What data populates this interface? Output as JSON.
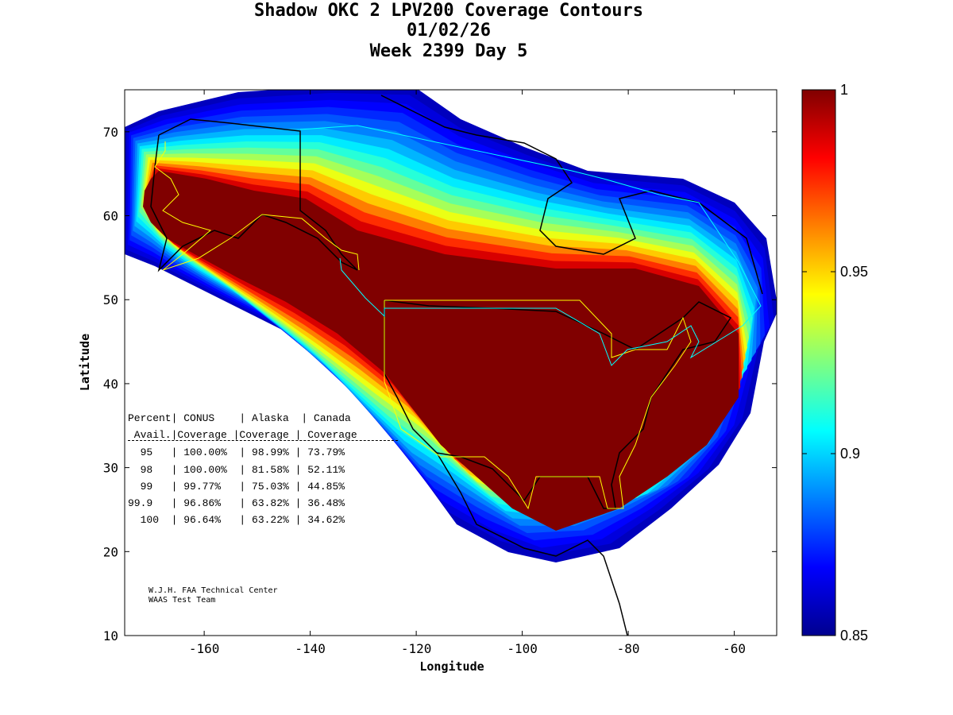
{
  "title": {
    "line1": "Shadow OKC 2 LPV200 Coverage Contours",
    "line2": "01/02/26",
    "line3": "Week 2399 Day 5"
  },
  "chart_data": {
    "type": "heatmap",
    "title": "Shadow OKC 2 LPV200 Coverage Contours",
    "xlabel": "Longitude",
    "ylabel": "Latitude",
    "xlim": [
      -175,
      -52
    ],
    "ylim": [
      10,
      75
    ],
    "xticks": [
      -160,
      -140,
      -120,
      -100,
      -80,
      -60
    ],
    "yticks": [
      10,
      20,
      30,
      40,
      50,
      60,
      70
    ],
    "colorbar": {
      "range": [
        0.85,
        1
      ],
      "ticks": [
        "0.85",
        "0.9",
        "0.95",
        "1"
      ],
      "colormap": "jet"
    }
  },
  "table": {
    "header1": [
      "Percent",
      "CONUS",
      "Alaska",
      "Canada"
    ],
    "header2": [
      "Avail.",
      "Coverage",
      "Coverage",
      "Coverage"
    ],
    "rows": [
      [
        "95",
        "100.00%",
        "98.99%",
        "73.79%"
      ],
      [
        "98",
        "100.00%",
        "81.58%",
        "52.11%"
      ],
      [
        "99",
        "99.77%",
        "75.03%",
        "44.85%"
      ],
      [
        "99.9",
        "96.86%",
        "63.82%",
        "36.48%"
      ],
      [
        "100",
        "96.64%",
        "63.22%",
        "34.62%"
      ]
    ]
  },
  "credit": {
    "line1": "W.J.H. FAA Technical Center",
    "line2": "WAAS Test Team"
  }
}
